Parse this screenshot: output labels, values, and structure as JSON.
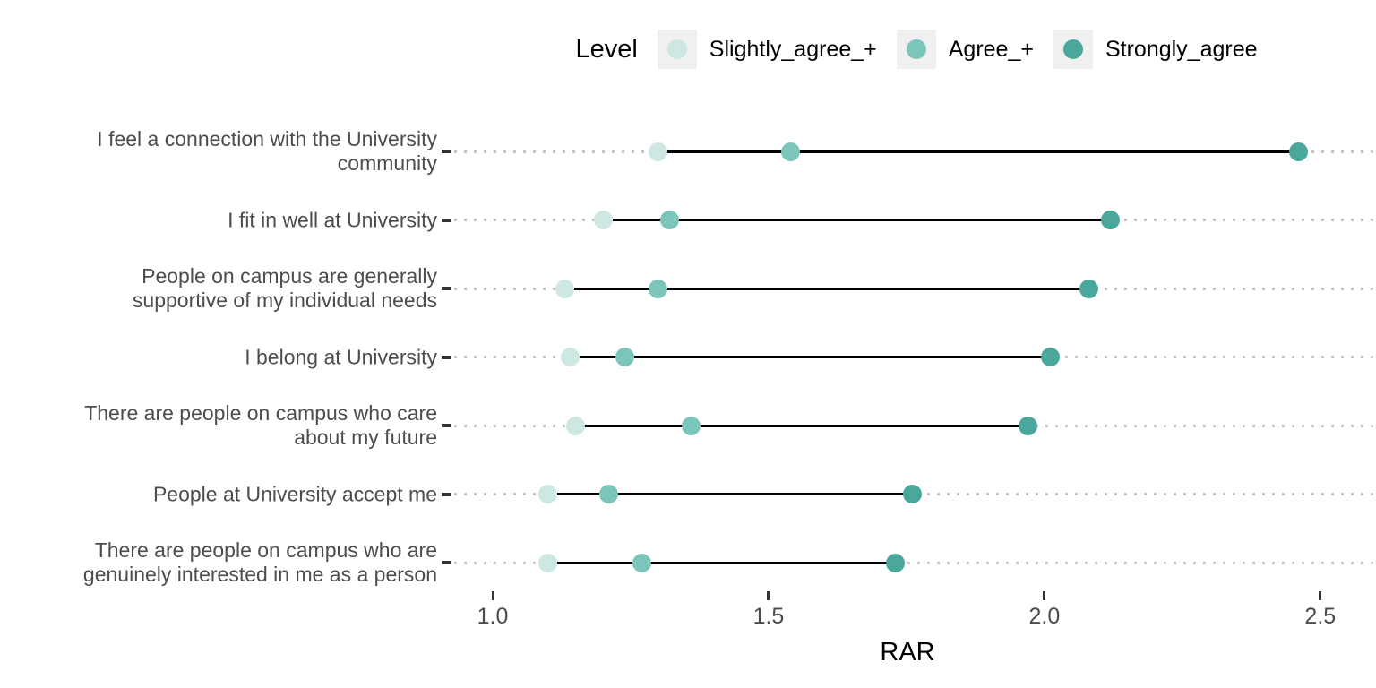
{
  "chart_data": {
    "type": "scatter",
    "subtype": "dumbbell-dot-plot",
    "title": "",
    "xlabel": "RAR",
    "ylabel": "",
    "legend_title": "Level",
    "legend_position": "top",
    "grid": "dotted horizontal reference lines",
    "xlim": [
      0.935,
      2.601
    ],
    "x_ticks": [
      1.0,
      1.5,
      2.0,
      2.5
    ],
    "x_tick_labels": [
      "1.0",
      "1.5",
      "2.0",
      "2.5"
    ],
    "categories": [
      "I feel a connection with the University\ncommunity",
      "I fit in well at University",
      "People on campus are generally\nsupportive of my individual needs",
      "I belong at University",
      "There are people on campus who care\nabout my future",
      "People at University accept me",
      "There are people on campus who are\ngenuinely interested in me as a person"
    ],
    "series": [
      {
        "name": "Slightly_agree_+",
        "color": "#cde8e3",
        "values": [
          1.3,
          1.2,
          1.13,
          1.14,
          1.15,
          1.1,
          1.1
        ]
      },
      {
        "name": "Agree_+",
        "color": "#7cc5bb",
        "values": [
          1.54,
          1.32,
          1.3,
          1.24,
          1.36,
          1.21,
          1.27
        ]
      },
      {
        "name": "Strongly_agree",
        "color": "#4aa79c",
        "values": [
          2.46,
          2.12,
          2.08,
          2.01,
          1.97,
          1.76,
          1.73
        ]
      }
    ]
  },
  "colors": {
    "background": "#ffffff",
    "axis_text": "#4d4d4d",
    "tick_mark": "#333333",
    "dotted_line": "#c4c4c4",
    "connector_line": "#000000",
    "legend_key_bg": "#f0f0f0"
  }
}
